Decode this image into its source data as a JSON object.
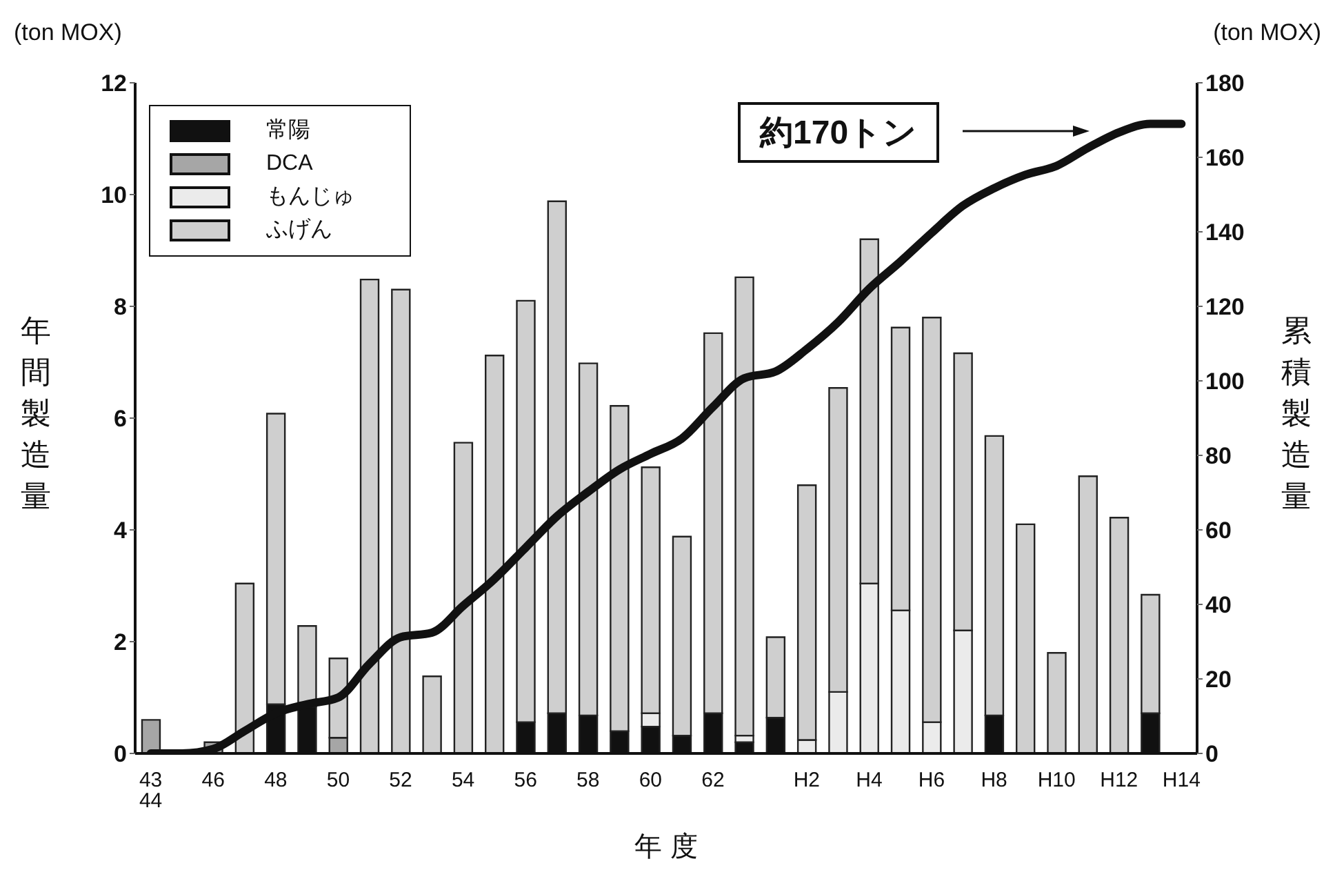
{
  "chart_data": {
    "type": "bar",
    "stacked": true,
    "xlabel": "年 度",
    "ylabel": "年間製造量",
    "y2label": "累積製造量",
    "categories": [
      "43\n44",
      null,
      "46",
      null,
      "48",
      null,
      "50",
      null,
      "52",
      null,
      "54",
      null,
      "56",
      null,
      "58",
      null,
      "60",
      null,
      "62",
      null,
      null,
      "H2",
      null,
      "H4",
      null,
      "H6",
      null,
      "H8",
      null,
      "H10",
      null,
      "H12",
      null,
      "H14"
    ],
    "series": [
      {
        "name": "常陽",
        "color": "#111111",
        "values": [
          null,
          null,
          null,
          null,
          0.88,
          0.84,
          null,
          null,
          null,
          null,
          null,
          null,
          0.56,
          0.72,
          0.68,
          0.4,
          0.48,
          0.32,
          0.72,
          0.2,
          0.64,
          null,
          null,
          null,
          null,
          null,
          null,
          0.68,
          null,
          null,
          null,
          null,
          0.72,
          null
        ]
      },
      {
        "name": "DCA",
        "color": "#a6a6a6",
        "values": [
          0.6,
          null,
          0.2,
          null,
          null,
          null,
          0.28,
          null,
          null,
          null,
          null,
          null,
          null,
          null,
          null,
          null,
          null,
          null,
          null,
          null,
          null,
          null,
          null,
          null,
          null,
          null,
          null,
          null,
          null,
          null,
          null,
          null,
          null,
          null
        ]
      },
      {
        "name": "もんじゅ",
        "color": "#ebebeb",
        "values": [
          null,
          null,
          null,
          null,
          null,
          null,
          null,
          null,
          null,
          null,
          null,
          null,
          null,
          null,
          null,
          null,
          0.24,
          null,
          null,
          0.12,
          null,
          0.24,
          1.1,
          3.04,
          2.56,
          0.56,
          2.2,
          null,
          null,
          null,
          null,
          null,
          null,
          null
        ]
      },
      {
        "name": "ふげん",
        "color": "#cfcfcf",
        "values": [
          null,
          null,
          null,
          3.04,
          5.2,
          1.44,
          1.42,
          8.48,
          8.3,
          1.38,
          5.56,
          7.12,
          7.54,
          9.16,
          6.3,
          5.82,
          4.4,
          3.56,
          6.8,
          8.2,
          1.44,
          4.56,
          5.44,
          6.16,
          5.06,
          7.24,
          4.96,
          5.0,
          4.1,
          1.8,
          4.96,
          4.22,
          2.12,
          null
        ]
      },
      {
        "type": "line",
        "axis": "y2",
        "color": "#111111",
        "values": [
          0,
          0,
          1.2,
          6,
          10.8,
          13.2,
          15,
          24,
          31.2,
          32.4,
          39.6,
          46.8,
          55.2,
          63.6,
          70.2,
          76.2,
          80.4,
          84.5,
          93,
          100.7,
          102.5,
          108.5,
          115.7,
          124.7,
          132,
          139.7,
          147,
          151.7,
          155.3,
          157.7,
          162.5,
          166.7,
          169,
          169
        ]
      }
    ],
    "ylim": [
      0,
      12
    ],
    "yticks": [
      0,
      2,
      4,
      6,
      8,
      10,
      12
    ],
    "y2lim": [
      0,
      180
    ],
    "y2ticks": [
      0,
      20,
      40,
      60,
      80,
      100,
      120,
      140,
      160,
      180
    ],
    "grid": false,
    "legend": "top left",
    "marker": "none",
    "line_style": "solid",
    "annotations": [
      "約170トン",
      "(ton MOX)",
      "(ton MOX)"
    ]
  }
}
